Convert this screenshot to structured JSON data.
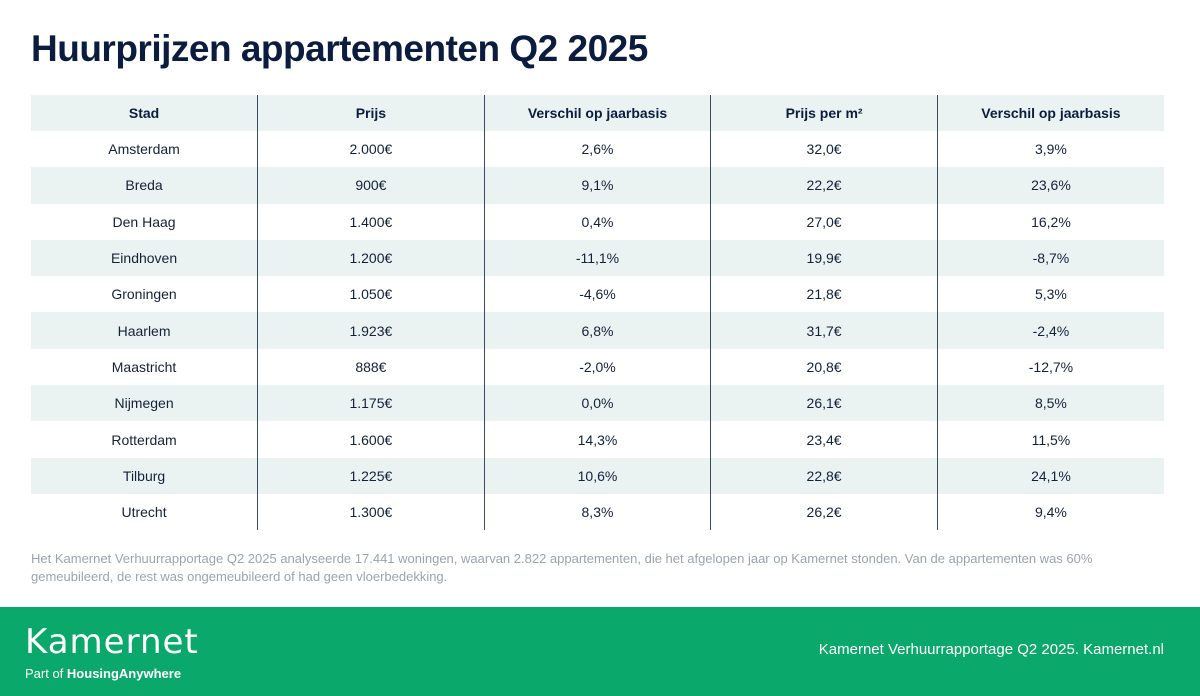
{
  "title": "Huurprijzen appartementen Q2 2025",
  "table": {
    "headers": [
      "Stad",
      "Prijs",
      "Verschil op jaarbasis",
      "Prijs per m²",
      "Verschil op jaarbasis"
    ],
    "rows": [
      [
        "Amsterdam",
        "2.000€",
        "2,6%",
        "32,0€",
        "3,9%"
      ],
      [
        "Breda",
        "900€",
        "9,1%",
        "22,2€",
        "23,6%"
      ],
      [
        "Den Haag",
        "1.400€",
        "0,4%",
        "27,0€",
        "16,2%"
      ],
      [
        "Eindhoven",
        "1.200€",
        "-11,1%",
        "19,9€",
        "-8,7%"
      ],
      [
        "Groningen",
        "1.050€",
        "-4,6%",
        "21,8€",
        "5,3%"
      ],
      [
        "Haarlem",
        "1.923€",
        "6,8%",
        "31,7€",
        "-2,4%"
      ],
      [
        "Maastricht",
        "888€",
        "-2,0%",
        "20,8€",
        "-12,7%"
      ],
      [
        "Nijmegen",
        "1.175€",
        "0,0%",
        "26,1€",
        "8,5%"
      ],
      [
        "Rotterdam",
        "1.600€",
        "14,3%",
        "23,4€",
        "11,5%"
      ],
      [
        "Tilburg",
        "1.225€",
        "10,6%",
        "22,8€",
        "24,1%"
      ],
      [
        "Utrecht",
        "1.300€",
        "8,3%",
        "26,2€",
        "9,4%"
      ]
    ]
  },
  "note": "Het Kamernet Verhuurrapportage Q2 2025 analyseerde 17.441 woningen, waarvan 2.822 appartementen, die het afgelopen jaar op Kamernet stonden. Van de appartementen was 60% gemeubileerd, de rest was ongemeubileerd of had geen vloerbedekking.",
  "footer": {
    "logo": "Kamernet",
    "logo_sub_prefix": "Part of ",
    "logo_sub_brand": "HousingAnywhere",
    "right_text": "Kamernet Verhuurrapportage Q2 2025. Kamernet.nl"
  },
  "colors": {
    "title": "#0b1c3f",
    "stripe": "#eaf3f1",
    "divider": "#3b4a63",
    "footer_bg": "#0aa86a",
    "note": "#9aa4ae"
  }
}
